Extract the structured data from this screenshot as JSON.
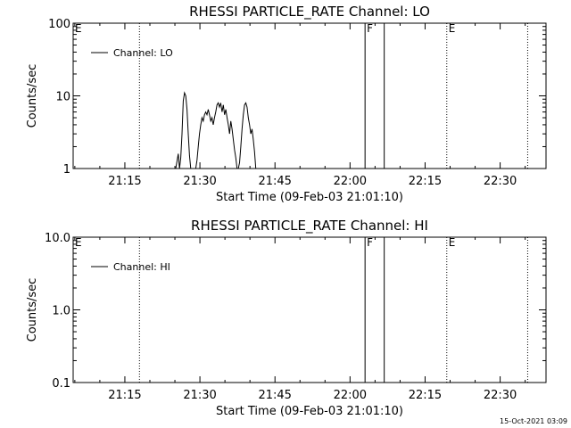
{
  "chart_data": [
    {
      "type": "line",
      "title": "RHESSI PARTICLE_RATE Channel: LO",
      "xlabel": "Start Time (09-Feb-03 21:01:10)",
      "ylabel": "Counts/sec",
      "yscale": "log",
      "ylim": [
        1,
        100
      ],
      "xlim": [
        "21:04:40",
        "22:39:10"
      ],
      "x_ticks": [
        "21:15",
        "21:30",
        "21:45",
        "22:00",
        "22:15",
        "22:30"
      ],
      "y_ticks": [
        "1",
        "10",
        "100"
      ],
      "legend": {
        "position": "top-left",
        "entries": [
          "Channel: LO"
        ]
      },
      "grid": false,
      "series": [
        {
          "name": "Channel: LO",
          "x": [
            "21:25:10",
            "21:25:40",
            "21:25:55",
            "21:26:10",
            "21:26:25",
            "21:26:40",
            "21:26:55",
            "21:27:10",
            "21:27:25",
            "21:27:40",
            "21:27:55",
            "21:28:10",
            "21:28:25",
            "21:28:40",
            "21:29:10",
            "21:29:25",
            "21:29:40",
            "21:29:55",
            "21:30:10",
            "21:30:25",
            "21:30:40",
            "21:30:55",
            "21:31:10",
            "21:31:25",
            "21:31:40",
            "21:31:55",
            "21:32:10",
            "21:32:25",
            "21:32:40",
            "21:32:55",
            "21:33:10",
            "21:33:25",
            "21:33:40",
            "21:33:55",
            "21:34:10",
            "21:34:25",
            "21:34:40",
            "21:34:55",
            "21:35:10",
            "21:35:25",
            "21:35:40",
            "21:35:55",
            "21:36:10",
            "21:36:25",
            "21:36:40",
            "21:36:55",
            "21:37:10",
            "21:37:25",
            "21:37:40",
            "21:37:55",
            "21:38:10",
            "21:38:25",
            "21:38:40",
            "21:38:55",
            "21:39:10",
            "21:39:25",
            "21:39:40",
            "21:39:55",
            "21:40:10",
            "21:40:25",
            "21:40:40",
            "21:40:55",
            "21:41:10",
            "21:41:25",
            "21:41:40",
            "21:41:55",
            "21:42:10",
            "21:42:25",
            "21:42:40",
            "21:42:55",
            "21:43:10"
          ],
          "values": [
            1.0,
            1.6,
            1.0,
            1.4,
            3.0,
            8.5,
            11.0,
            10.0,
            6.5,
            3.0,
            1.5,
            1.0,
            1.0,
            1.0,
            1.0,
            1.3,
            2.0,
            3.0,
            4.0,
            5.0,
            4.5,
            5.5,
            6.0,
            5.5,
            6.5,
            5.5,
            4.5,
            5.0,
            4.0,
            5.0,
            6.0,
            7.5,
            8.0,
            7.0,
            8.0,
            6.0,
            7.5,
            5.5,
            6.5,
            5.0,
            4.0,
            3.0,
            4.5,
            3.5,
            2.5,
            1.8,
            1.4,
            1.0,
            1.0,
            1.2,
            2.0,
            3.5,
            5.5,
            7.5,
            8.0,
            7.0,
            5.0,
            4.0,
            3.0,
            3.5,
            2.5,
            1.7,
            1.0,
            1.0,
            1.0,
            1.0,
            1.0,
            1.0,
            1.0,
            1.0,
            1.0
          ]
        }
      ],
      "markers": [
        {
          "time": "21:04:40",
          "style": "dotted",
          "label": "E"
        },
        {
          "time": "21:17:55",
          "style": "dotted",
          "label": ""
        },
        {
          "time": "22:03:00",
          "style": "solid",
          "label": "F"
        },
        {
          "time": "22:06:50",
          "style": "solid",
          "label": ""
        },
        {
          "time": "22:19:20",
          "style": "dotted",
          "label": "E"
        },
        {
          "time": "22:35:30",
          "style": "dotted",
          "label": ""
        }
      ]
    },
    {
      "type": "line",
      "title": "RHESSI PARTICLE_RATE Channel: HI",
      "xlabel": "Start Time (09-Feb-03 21:01:10)",
      "ylabel": "Counts/sec",
      "yscale": "log",
      "ylim": [
        0.1,
        10.0
      ],
      "xlim": [
        "21:04:40",
        "22:39:10"
      ],
      "x_ticks": [
        "21:15",
        "21:30",
        "21:45",
        "22:00",
        "22:15",
        "22:30"
      ],
      "y_ticks": [
        "0.1",
        "1.0",
        "10.0"
      ],
      "legend": {
        "position": "top-left",
        "entries": [
          "Channel: HI"
        ]
      },
      "grid": false,
      "series": [
        {
          "name": "Channel: HI",
          "x": [],
          "values": []
        }
      ],
      "markers": [
        {
          "time": "21:04:40",
          "style": "dotted",
          "label": "E"
        },
        {
          "time": "21:17:55",
          "style": "dotted",
          "label": ""
        },
        {
          "time": "22:03:00",
          "style": "solid",
          "label": "F"
        },
        {
          "time": "22:06:50",
          "style": "solid",
          "label": ""
        },
        {
          "time": "22:19:20",
          "style": "dotted",
          "label": "E"
        },
        {
          "time": "22:35:30",
          "style": "dotted",
          "label": ""
        }
      ]
    }
  ],
  "footer": {
    "timestamp": "15-Oct-2021 03:09"
  }
}
